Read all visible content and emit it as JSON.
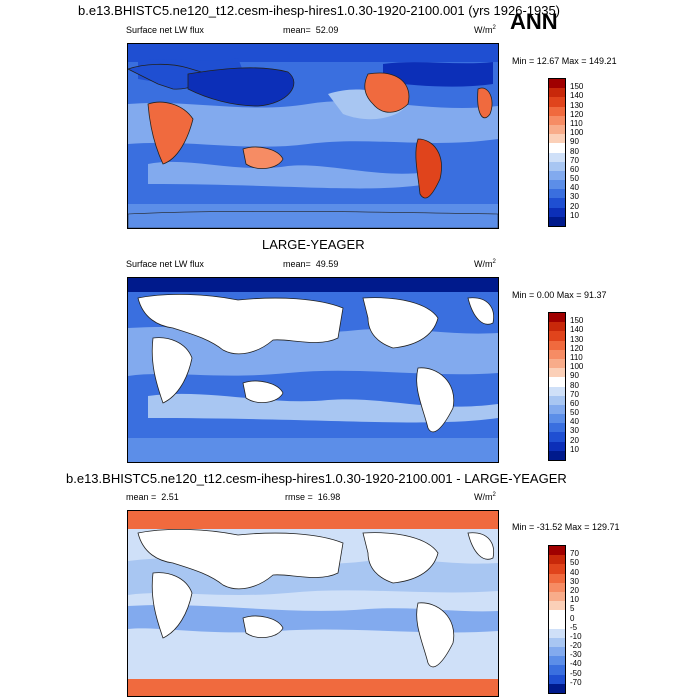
{
  "season": "ANN",
  "units_label": "W/m",
  "units_sup": "2",
  "panels": [
    {
      "title": "b.e13.BHISTC5.ne120_t12.cesm-ihesp-hires1.0.30-1920-2100.001 (yrs 1926-1935)",
      "var_label": "Surface net LW flux",
      "mean_label": "mean=",
      "mean_value": "52.09",
      "minmax": "Min =  12.67 Max = 149.21",
      "colorbar": [
        "150",
        "140",
        "130",
        "120",
        "110",
        "100",
        "90",
        "80",
        "70",
        "60",
        "50",
        "40",
        "30",
        "20",
        "10"
      ],
      "colors": [
        "#a00000",
        "#c8280a",
        "#e0441c",
        "#f06a3e",
        "#f68c64",
        "#f8ac8a",
        "#fbd0b8",
        "#ffffff",
        "#cfe0f8",
        "#a8c6f2",
        "#82aaee",
        "#5c8ee8",
        "#3a6fdf",
        "#1f4fd2",
        "#0c2fb8",
        "#001a8c"
      ]
    },
    {
      "title": "LARGE-YEAGER",
      "var_label": "Surface net LW flux",
      "mean_label": "mean=",
      "mean_value": "49.59",
      "minmax": "Min =   0.00 Max =  91.37",
      "colorbar": [
        "150",
        "140",
        "130",
        "120",
        "110",
        "100",
        "90",
        "80",
        "70",
        "60",
        "50",
        "40",
        "30",
        "20",
        "10"
      ],
      "colors": [
        "#a00000",
        "#c8280a",
        "#e0441c",
        "#f06a3e",
        "#f68c64",
        "#f8ac8a",
        "#fbd0b8",
        "#ffffff",
        "#cfe0f8",
        "#a8c6f2",
        "#82aaee",
        "#5c8ee8",
        "#3a6fdf",
        "#1f4fd2",
        "#0c2fb8",
        "#001a8c"
      ]
    },
    {
      "title": "b.e13.BHISTC5.ne120_t12.cesm-ihesp-hires1.0.30-1920-2100.001 - LARGE-YEAGER",
      "var_label": "",
      "mean_label": "mean =",
      "mean_value": "2.51",
      "rmse_label": "rmse =",
      "rmse_value": "16.98",
      "minmax": "Min = -31.52 Max = 129.71",
      "colorbar": [
        "70",
        "50",
        "40",
        "30",
        "20",
        "10",
        "5",
        "0",
        "-5",
        "-10",
        "-20",
        "-30",
        "-40",
        "-50",
        "-70"
      ],
      "colors": [
        "#a00000",
        "#c8280a",
        "#e0441c",
        "#f06a3e",
        "#f68c64",
        "#f8ac8a",
        "#fbd0b8",
        "#ffffff",
        "#ffffff",
        "#cfe0f8",
        "#a8c6f2",
        "#82aaee",
        "#5c8ee8",
        "#3a6fdf",
        "#1f4fd2",
        "#001a8c"
      ]
    }
  ]
}
